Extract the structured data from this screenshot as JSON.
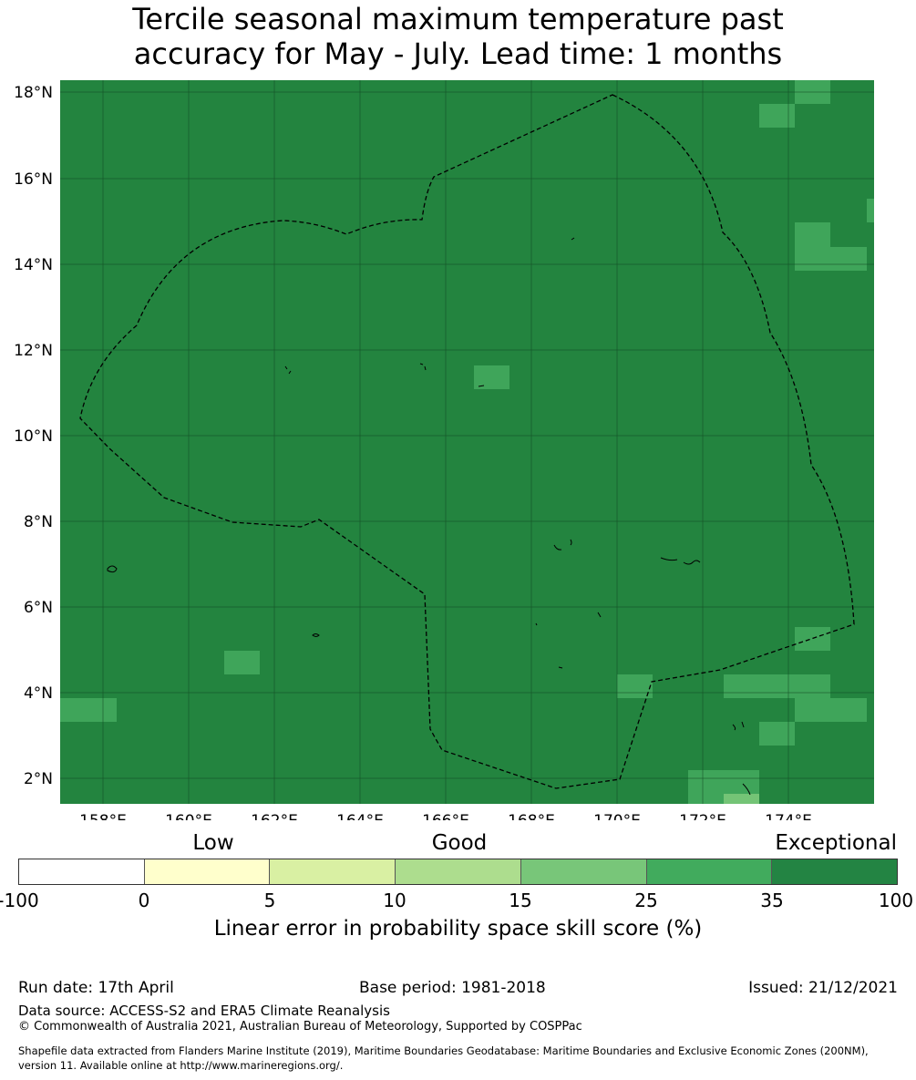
{
  "title": {
    "line1": "Tercile seasonal maximum temperature past",
    "line2": "accuracy for May - July. Lead time: 1 months"
  },
  "map": {
    "lat_ticks": [
      "18°N",
      "16°N",
      "14°N",
      "12°N",
      "10°N",
      "8°N",
      "6°N",
      "4°N",
      "2°N"
    ],
    "lon_ticks": [
      "158°E",
      "160°E",
      "162°E",
      "164°E",
      "166°E",
      "168°E",
      "170°E",
      "172°E",
      "174°E"
    ],
    "background_color": "#23843f",
    "lighter_cell_color": "#3fa55a",
    "lightest_cell_color": "#74c476"
  },
  "colorbar": {
    "categories": [
      "Low",
      "Good",
      "Exceptional"
    ],
    "ticks": [
      "-100",
      "0",
      "5",
      "10",
      "15",
      "25",
      "35",
      "100"
    ],
    "colors": [
      "#ffffff",
      "#ffffcc",
      "#d9f0a3",
      "#addd8e",
      "#78c679",
      "#41ab5d",
      "#238443"
    ],
    "label": "Linear error in probability space skill score (%)"
  },
  "footer": {
    "run_date": "Run date: 17th April",
    "base_period": "Base period: 1981-2018",
    "issued": "Issued: 21/12/2021",
    "data_source": "Data source: ACCESS-S2 and ERA5 Climate Reanalysis",
    "copyright": "© Commonwealth of Australia 2021, Australian Bureau of Meteorology, Supported by COSPPac",
    "shapefile_line1": "Shapefile data extracted from Flanders Marine Institute (2019), Maritime Boundaries Geodatabase: Maritime Boundaries and Exclusive Economic Zones (200NM),",
    "shapefile_line2": "version 11. Available online at http://www.marineregions.org/."
  }
}
